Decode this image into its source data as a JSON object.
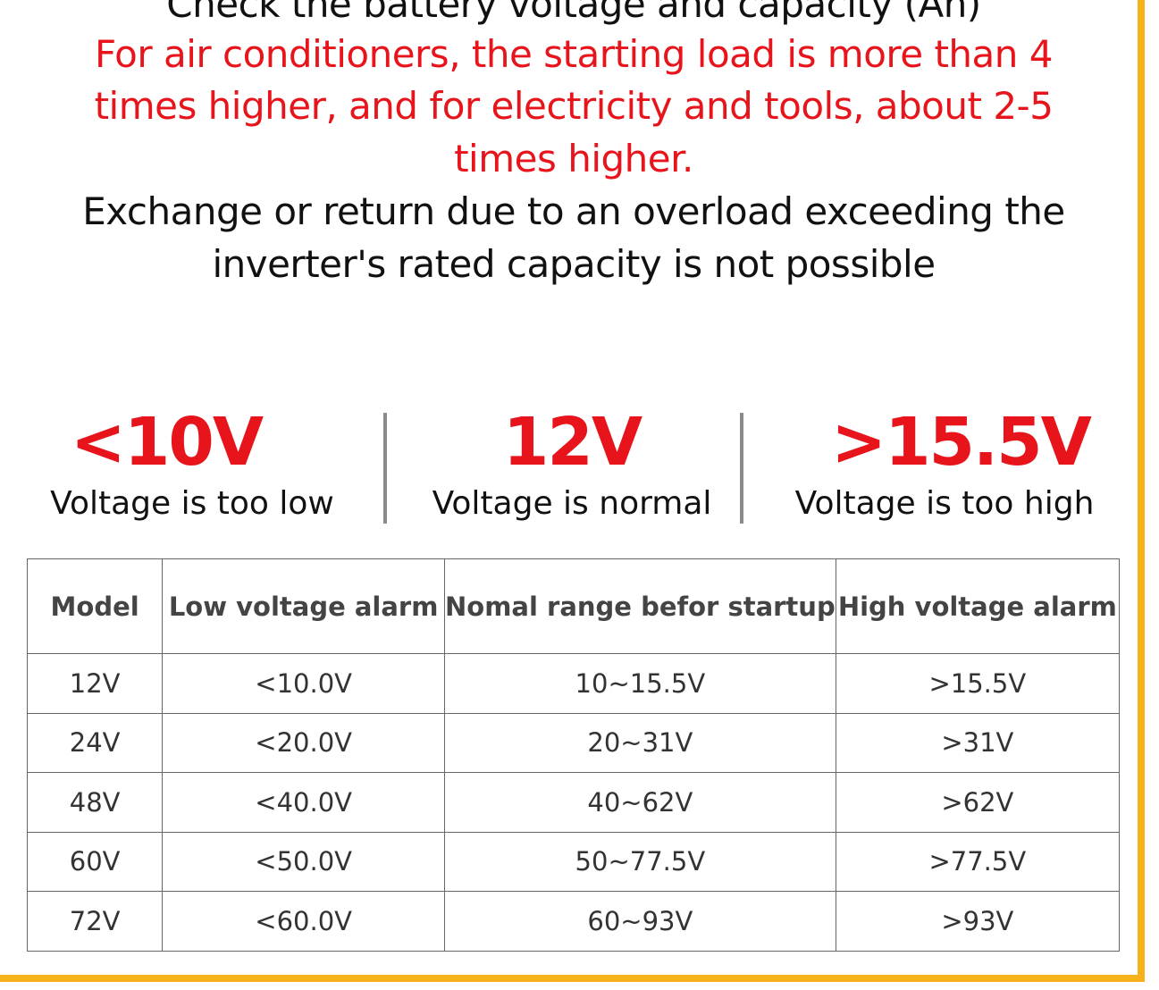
{
  "heading": "Check the battery voltage and capacity (Ah)",
  "warning_lines": [
    "For air conditioners, the starting load is more than 4",
    "times higher, and for electricity and tools, about 2-5",
    "times higher."
  ],
  "notice_lines": [
    "Exchange or return due to an overload exceeding the",
    "inverter's rated capacity is not possible"
  ],
  "indicators": [
    {
      "value": "<10V",
      "label": "Voltage is too low"
    },
    {
      "value": "12V",
      "label": "Voltage is normal"
    },
    {
      "value": ">15.5V",
      "label": "Voltage is too high"
    }
  ],
  "table": {
    "headers": [
      "Model",
      "Low voltage alarm",
      "Nomal range befor startup",
      "High voltage alarm"
    ],
    "rows": [
      [
        "12V",
        "<10.0V",
        "10~15.5V",
        ">15.5V"
      ],
      [
        "24V",
        "<20.0V",
        "20~31V",
        ">31V"
      ],
      [
        "48V",
        "<40.0V",
        "40~62V",
        ">62V"
      ],
      [
        "60V",
        "<50.0V",
        "50~77.5V",
        ">77.5V"
      ],
      [
        "72V",
        "<60.0V",
        "60~93V",
        ">93V"
      ]
    ]
  },
  "colors": {
    "accent": "#e8141b",
    "border": "#f7b21b"
  }
}
